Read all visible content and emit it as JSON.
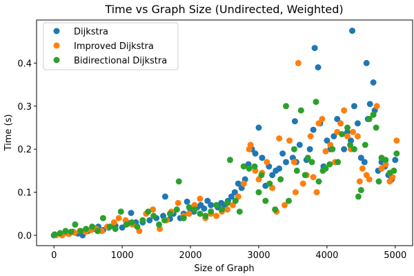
{
  "chart_data": {
    "type": "scatter",
    "title": "Time vs Graph Size (Undirected, Weighted)",
    "xlabel": "Size of Graph",
    "ylabel": "Time (s)",
    "xlim": [
      -255,
      5255
    ],
    "ylim": [
      -0.024,
      0.5
    ],
    "xticks": [
      0,
      1000,
      2000,
      3000,
      4000,
      5000
    ],
    "yticks": [
      0.0,
      0.1,
      0.2,
      0.3,
      0.4
    ],
    "ytick_labels": [
      "0.0",
      "0.1",
      "0.2",
      "0.3",
      "0.4"
    ],
    "grid": false,
    "legend_position": "top-left",
    "series": [
      {
        "name": "Dijkstra",
        "color": "#1f77b4",
        "points": [
          [
            0,
            0.0
          ],
          [
            100,
            0.003
          ],
          [
            200,
            0.005
          ],
          [
            280,
            0.008
          ],
          [
            350,
            0.004
          ],
          [
            420,
            0.0
          ],
          [
            500,
            0.01
          ],
          [
            580,
            0.015
          ],
          [
            650,
            0.02
          ],
          [
            720,
            0.012
          ],
          [
            800,
            0.018
          ],
          [
            900,
            0.022
          ],
          [
            1000,
            0.018
          ],
          [
            1100,
            0.028
          ],
          [
            1130,
            0.052
          ],
          [
            1200,
            0.03
          ],
          [
            1300,
            0.03
          ],
          [
            1400,
            0.035
          ],
          [
            1500,
            0.04
          ],
          [
            1600,
            0.045
          ],
          [
            1630,
            0.09
          ],
          [
            1700,
            0.038
          ],
          [
            1750,
            0.05
          ],
          [
            1850,
            0.04
          ],
          [
            1900,
            0.05
          ],
          [
            1950,
            0.078
          ],
          [
            2000,
            0.06
          ],
          [
            2050,
            0.055
          ],
          [
            2100,
            0.065
          ],
          [
            2150,
            0.07
          ],
          [
            2200,
            0.062
          ],
          [
            2250,
            0.08
          ],
          [
            2300,
            0.07
          ],
          [
            2400,
            0.065
          ],
          [
            2450,
            0.075
          ],
          [
            2500,
            0.068
          ],
          [
            2550,
            0.08
          ],
          [
            2600,
            0.09
          ],
          [
            2650,
            0.1
          ],
          [
            2700,
            0.12
          ],
          [
            2750,
            0.11
          ],
          [
            2800,
            0.13
          ],
          [
            2850,
            0.165
          ],
          [
            2900,
            0.2
          ],
          [
            2950,
            0.19
          ],
          [
            3000,
            0.25
          ],
          [
            3050,
            0.18
          ],
          [
            3100,
            0.115
          ],
          [
            3150,
            0.16
          ],
          [
            3200,
            0.14
          ],
          [
            3250,
            0.15
          ],
          [
            3300,
            0.155
          ],
          [
            3350,
            0.19
          ],
          [
            3400,
            0.17
          ],
          [
            3500,
            0.18
          ],
          [
            3530,
            0.265
          ],
          [
            3550,
            0.17
          ],
          [
            3600,
            0.21
          ],
          [
            3700,
            0.175
          ],
          [
            3750,
            0.2
          ],
          [
            3800,
            0.245
          ],
          [
            3820,
            0.435
          ],
          [
            3870,
            0.39
          ],
          [
            3900,
            0.26
          ],
          [
            3950,
            0.16
          ],
          [
            4000,
            0.22
          ],
          [
            4050,
            0.2
          ],
          [
            4100,
            0.23
          ],
          [
            4150,
            0.27
          ],
          [
            4200,
            0.26
          ],
          [
            4250,
            0.2
          ],
          [
            4300,
            0.24
          ],
          [
            4350,
            0.22
          ],
          [
            4370,
            0.475
          ],
          [
            4400,
            0.3
          ],
          [
            4450,
            0.26
          ],
          [
            4500,
            0.18
          ],
          [
            4550,
            0.17
          ],
          [
            4580,
            0.4
          ],
          [
            4600,
            0.27
          ],
          [
            4630,
            0.305
          ],
          [
            4680,
            0.355
          ],
          [
            4700,
            0.29
          ],
          [
            4750,
            0.15
          ],
          [
            4800,
            0.17
          ],
          [
            4850,
            0.16
          ],
          [
            4900,
            0.14
          ],
          [
            4950,
            0.13
          ],
          [
            5000,
            0.175
          ]
        ]
      },
      {
        "name": "Improved Dijkstra",
        "color": "#ff7f0e",
        "points": [
          [
            30,
            0.0
          ],
          [
            120,
            0.0
          ],
          [
            220,
            0.003
          ],
          [
            300,
            0.006
          ],
          [
            380,
            0.01
          ],
          [
            460,
            0.008
          ],
          [
            540,
            0.012
          ],
          [
            620,
            0.015
          ],
          [
            700,
            0.01
          ],
          [
            780,
            0.02
          ],
          [
            880,
            0.03
          ],
          [
            950,
            0.04
          ],
          [
            1050,
            0.035
          ],
          [
            1150,
            0.025
          ],
          [
            1250,
            0.01
          ],
          [
            1350,
            0.05
          ],
          [
            1450,
            0.06
          ],
          [
            1550,
            0.015
          ],
          [
            1650,
            0.035
          ],
          [
            1720,
            0.055
          ],
          [
            1820,
            0.075
          ],
          [
            1900,
            0.045
          ],
          [
            1980,
            0.05
          ],
          [
            2060,
            0.07
          ],
          [
            2140,
            0.085
          ],
          [
            2220,
            0.04
          ],
          [
            2300,
            0.05
          ],
          [
            2380,
            0.045
          ],
          [
            2460,
            0.055
          ],
          [
            2540,
            0.06
          ],
          [
            2620,
            0.07
          ],
          [
            2700,
            0.09
          ],
          [
            2780,
            0.12
          ],
          [
            2860,
            0.2
          ],
          [
            2880,
            0.21
          ],
          [
            2950,
            0.15
          ],
          [
            3000,
            0.13
          ],
          [
            3050,
            0.145
          ],
          [
            3120,
            0.17
          ],
          [
            3200,
            0.11
          ],
          [
            3260,
            0.055
          ],
          [
            3300,
            0.225
          ],
          [
            3380,
            0.07
          ],
          [
            3450,
            0.22
          ],
          [
            3520,
            0.17
          ],
          [
            3540,
            0.1
          ],
          [
            3580,
            0.4
          ],
          [
            3650,
            0.12
          ],
          [
            3700,
            0.14
          ],
          [
            3760,
            0.23
          ],
          [
            3800,
            0.135
          ],
          [
            3850,
            0.1
          ],
          [
            3880,
            0.26
          ],
          [
            3930,
            0.27
          ],
          [
            3980,
            0.195
          ],
          [
            4050,
            0.21
          ],
          [
            4120,
            0.17
          ],
          [
            4150,
            0.24
          ],
          [
            4200,
            0.26
          ],
          [
            4250,
            0.29
          ],
          [
            4300,
            0.23
          ],
          [
            4350,
            0.2
          ],
          [
            4380,
            0.24
          ],
          [
            4450,
            0.23
          ],
          [
            4480,
            0.125
          ],
          [
            4520,
            0.155
          ],
          [
            4580,
            0.14
          ],
          [
            4620,
            0.13
          ],
          [
            4680,
            0.28
          ],
          [
            4730,
            0.3
          ],
          [
            4800,
            0.155
          ],
          [
            4860,
            0.165
          ],
          [
            4920,
            0.125
          ],
          [
            4960,
            0.135
          ],
          [
            5020,
            0.22
          ]
        ]
      },
      {
        "name": "Bidirectional Dijkstra",
        "color": "#2ca02c",
        "points": [
          [
            10,
            0.002
          ],
          [
            90,
            0.005
          ],
          [
            170,
            0.01
          ],
          [
            250,
            0.008
          ],
          [
            310,
            0.025
          ],
          [
            390,
            0.01
          ],
          [
            470,
            0.015
          ],
          [
            560,
            0.02
          ],
          [
            640,
            0.01
          ],
          [
            720,
            0.04
          ],
          [
            820,
            0.02
          ],
          [
            900,
            0.015
          ],
          [
            980,
            0.055
          ],
          [
            1060,
            0.025
          ],
          [
            1140,
            0.03
          ],
          [
            1220,
            0.02
          ],
          [
            1300,
            0.035
          ],
          [
            1380,
            0.055
          ],
          [
            1460,
            0.045
          ],
          [
            1540,
            0.025
          ],
          [
            1620,
            0.035
          ],
          [
            1700,
            0.05
          ],
          [
            1800,
            0.06
          ],
          [
            1830,
            0.125
          ],
          [
            1900,
            0.04
          ],
          [
            1980,
            0.065
          ],
          [
            2060,
            0.06
          ],
          [
            2140,
            0.05
          ],
          [
            2220,
            0.045
          ],
          [
            2300,
            0.055
          ],
          [
            2380,
            0.07
          ],
          [
            2460,
            0.06
          ],
          [
            2540,
            0.075
          ],
          [
            2580,
            0.175
          ],
          [
            2660,
            0.08
          ],
          [
            2720,
            0.055
          ],
          [
            2780,
            0.16
          ],
          [
            2860,
            0.155
          ],
          [
            2940,
            0.16
          ],
          [
            3000,
            0.1
          ],
          [
            3040,
            0.14
          ],
          [
            3100,
            0.08
          ],
          [
            3160,
            0.12
          ],
          [
            3240,
            0.06
          ],
          [
            3320,
            0.13
          ],
          [
            3400,
            0.3
          ],
          [
            3440,
            0.08
          ],
          [
            3520,
            0.2
          ],
          [
            3560,
            0.15
          ],
          [
            3620,
            0.29
          ],
          [
            3680,
            0.14
          ],
          [
            3720,
            0.18
          ],
          [
            3780,
            0.17
          ],
          [
            3840,
            0.31
          ],
          [
            3880,
            0.125
          ],
          [
            3940,
            0.15
          ],
          [
            3980,
            0.155
          ],
          [
            4040,
            0.165
          ],
          [
            4080,
            0.2
          ],
          [
            4160,
            0.17
          ],
          [
            4220,
            0.235
          ],
          [
            4300,
            0.25
          ],
          [
            4340,
            0.21
          ],
          [
            4400,
            0.2
          ],
          [
            4460,
            0.09
          ],
          [
            4500,
            0.105
          ],
          [
            4560,
            0.21
          ],
          [
            4620,
            0.27
          ],
          [
            4680,
            0.28
          ],
          [
            4720,
            0.25
          ],
          [
            4760,
            0.125
          ],
          [
            4800,
            0.18
          ],
          [
            4860,
            0.175
          ],
          [
            4920,
            0.145
          ],
          [
            4980,
            0.15
          ],
          [
            5020,
            0.19
          ]
        ]
      }
    ]
  }
}
